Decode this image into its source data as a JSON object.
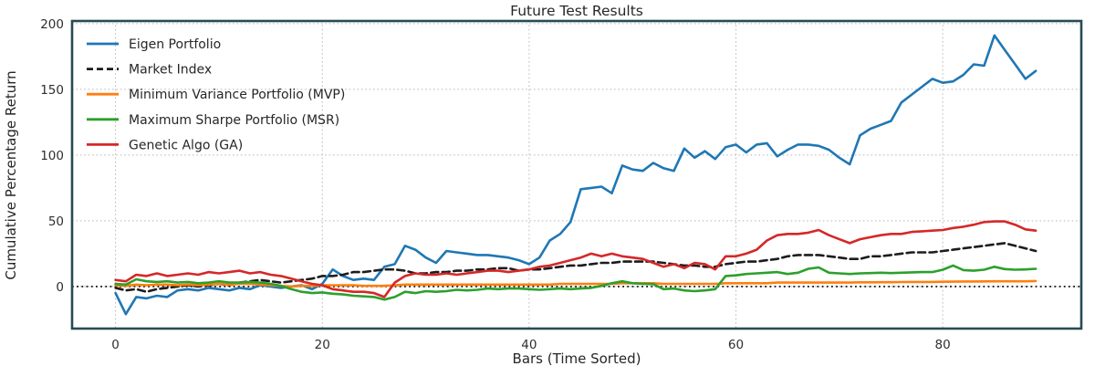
{
  "chart_data": {
    "type": "line",
    "title": "Future Test Results",
    "xlabel": "Bars (Time Sorted)",
    "ylabel": "Cumulative Percentage Return",
    "x_start": 0,
    "x_step": 1,
    "n_points": 90,
    "xlim": [
      -4.2,
      93.4
    ],
    "ylim": [
      -32,
      202
    ],
    "x_ticks": [
      0,
      20,
      40,
      60,
      80
    ],
    "y_ticks": [
      0,
      50,
      100,
      150,
      200
    ],
    "grid": true,
    "grid_style": "dotted",
    "zero_line": true,
    "legend_position": "upper-left",
    "frame_color": "#274b53",
    "grid_color": "#b9b9b9",
    "zero_line_color": "#000000",
    "series": [
      {
        "name": "Eigen Portfolio",
        "color": "#1f77b4",
        "style": "solid",
        "values": [
          -5,
          -21,
          -8,
          -9,
          -7,
          -8,
          -3,
          -2,
          -3,
          -1,
          -2,
          -3,
          -1,
          -2,
          1,
          0,
          -1,
          0,
          1,
          -2,
          2,
          13,
          8,
          5,
          6,
          5,
          15,
          17,
          31,
          28,
          22,
          18,
          27,
          26,
          25,
          24,
          24,
          23,
          22,
          20,
          17,
          22,
          35,
          40,
          49,
          74,
          75,
          76,
          71,
          92,
          89,
          88,
          94,
          90,
          88,
          105,
          98,
          103,
          97,
          106,
          108,
          102,
          108,
          109,
          99,
          104,
          108,
          108,
          107,
          104,
          98,
          93,
          115,
          120,
          123,
          126,
          140,
          146,
          152,
          158,
          155,
          156,
          161,
          169,
          168,
          191,
          180,
          169,
          158,
          164
        ]
      },
      {
        "name": "Market Index",
        "color": "#1c1c1c",
        "style": "dashed",
        "values": [
          -1,
          -3,
          -2,
          -4,
          -2,
          -1,
          0,
          1,
          0,
          1,
          2,
          1,
          3,
          4,
          5,
          4,
          3,
          4,
          5,
          6,
          8,
          8,
          9,
          11,
          11,
          12,
          13,
          13,
          12,
          10,
          10,
          11,
          11,
          12,
          12,
          13,
          13,
          14,
          14,
          12,
          13,
          13,
          14,
          15,
          16,
          16,
          17,
          18,
          18,
          19,
          19,
          19,
          19,
          18,
          17,
          16,
          16,
          15,
          15,
          17,
          18,
          19,
          19,
          20,
          21,
          23,
          24,
          24,
          24,
          23,
          22,
          21,
          21,
          23,
          23,
          24,
          25,
          26,
          26,
          26,
          27,
          28,
          29,
          30,
          31,
          32,
          33,
          31,
          29,
          27
        ]
      },
      {
        "name": "Minimum Variance Portfolio (MVP)",
        "color": "#ff7f0e",
        "style": "solid",
        "values": [
          1,
          0.5,
          1.5,
          1,
          1.5,
          1.5,
          1,
          1.5,
          1,
          1.5,
          2,
          1.5,
          2,
          2,
          1.5,
          1,
          0.5,
          0,
          0.5,
          0.5,
          1,
          1,
          1,
          1,
          0.5,
          0.5,
          0.5,
          1,
          1.5,
          1.5,
          1.5,
          1.5,
          1.5,
          1.5,
          1.5,
          1.5,
          1.5,
          1.5,
          1.5,
          1.5,
          1.5,
          1.5,
          1.5,
          2,
          2,
          2,
          2,
          2,
          2,
          2.5,
          2.5,
          2.5,
          2.5,
          2,
          2,
          2,
          2,
          2,
          2,
          2.5,
          2.5,
          2.5,
          2.5,
          2.5,
          3,
          3,
          3,
          3,
          3,
          3,
          3,
          3,
          3.2,
          3.2,
          3.3,
          3.3,
          3.4,
          3.5,
          3.5,
          3.5,
          3.6,
          3.7,
          3.8,
          3.8,
          3.9,
          4,
          4,
          4,
          4,
          4.2
        ]
      },
      {
        "name": "Maximum Sharpe Portfolio (MSR)",
        "color": "#2ca02c",
        "style": "solid",
        "values": [
          2,
          1.5,
          5.5,
          4,
          3.5,
          4,
          3,
          3.5,
          2.5,
          3,
          4,
          3,
          3,
          3.5,
          3,
          2,
          0.5,
          -2,
          -4,
          -5,
          -4.5,
          -5.5,
          -6,
          -7,
          -7.5,
          -8,
          -10,
          -8,
          -4,
          -5,
          -3.5,
          -4,
          -3.5,
          -2.5,
          -3,
          -2.5,
          -1.5,
          -2,
          -1.5,
          -1.5,
          -2,
          -2.5,
          -2,
          -1.5,
          -2,
          -1.5,
          -1,
          0.5,
          2.5,
          4,
          2.5,
          2,
          1.8,
          -2,
          -1.5,
          -3,
          -3.5,
          -3,
          -2,
          8,
          8.5,
          9.5,
          10,
          10.5,
          11,
          9.5,
          10.5,
          13.5,
          14.5,
          10.5,
          10,
          9.5,
          10,
          10.2,
          10.5,
          10.2,
          10.5,
          10.8,
          11,
          11,
          12.8,
          16,
          12.5,
          12,
          12.8,
          15,
          13.3,
          12.8,
          13,
          13.5
        ]
      },
      {
        "name": "Genetic Algo (GA)",
        "color": "#d62728",
        "style": "solid",
        "values": [
          5,
          4,
          9,
          8,
          10,
          8,
          9,
          10,
          9,
          11,
          10,
          11,
          12,
          10,
          11,
          9,
          8,
          6,
          4,
          2,
          1,
          -2,
          -3,
          -4,
          -4,
          -5,
          -8,
          3,
          8,
          10,
          9,
          9,
          10,
          9,
          10,
          11,
          12,
          12,
          11,
          12,
          13,
          15,
          16,
          18,
          20,
          22,
          25,
          23,
          25,
          23,
          22,
          21,
          18,
          15,
          17,
          14,
          18,
          17,
          13,
          23,
          23,
          25,
          28,
          35,
          39,
          40,
          40,
          41,
          43,
          39,
          36,
          33,
          36,
          37.5,
          39,
          40,
          40,
          41.5,
          42,
          42.5,
          43,
          44.5,
          45.5,
          47,
          49,
          49.5,
          49.5,
          47,
          43.5,
          42.5
        ]
      }
    ]
  }
}
